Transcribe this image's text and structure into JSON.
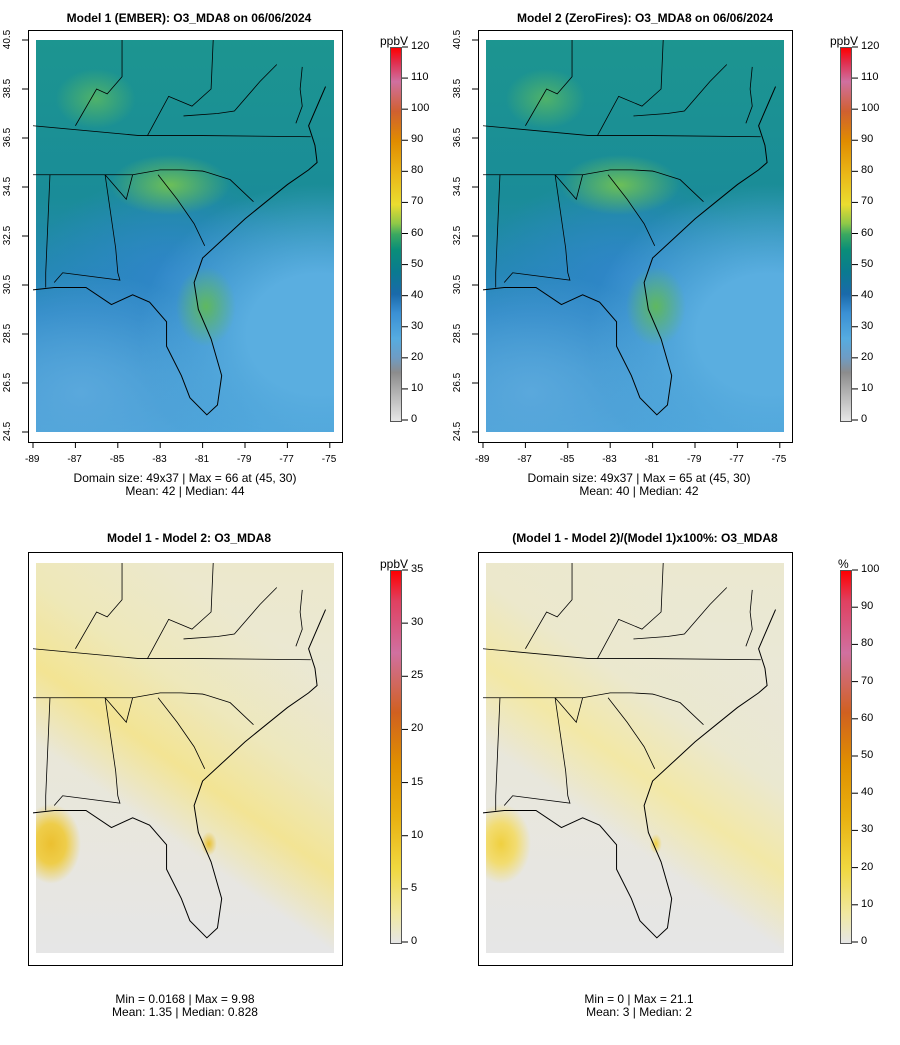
{
  "panels": [
    {
      "title": "Model 1 (EMBER): O3_MDA8 on 06/06/2024",
      "stats1": "Domain size: 49x37 | Max = 66 at (45, 30)",
      "stats2": "Mean: 42 |  Median: 44",
      "unit": "ppbV",
      "kind": "ozone"
    },
    {
      "title": "Model 2 (ZeroFires): O3_MDA8 on 06/06/2024",
      "stats1": "Domain size: 49x37 | Max = 65 at (45, 30)",
      "stats2": "Mean: 40 |  Median: 42",
      "unit": "ppbV",
      "kind": "ozone"
    },
    {
      "title": "Model 1 - Model 2: O3_MDA8",
      "stats1": "Min = 0.0168 | Max = 9.98",
      "stats2": "Mean: 1.35 |  Median: 0.828",
      "unit": "ppbV",
      "kind": "diff"
    },
    {
      "title": "(Model 1 - Model 2)/(Model 1)x100%: O3_MDA8",
      "stats1": "Min = 0 | Max = 21.1",
      "stats2": "Mean: 3 |  Median: 2",
      "unit": "%",
      "kind": "pct"
    }
  ],
  "chart_data": [
    {
      "type": "heatmap",
      "title": "Model 1 (EMBER): O3_MDA8 on 06/06/2024",
      "xlabel": "",
      "ylabel": "",
      "xticks": [
        "-89",
        "-87",
        "-85",
        "-83",
        "-81",
        "-79",
        "-77",
        "-75"
      ],
      "yticks": [
        "40.5",
        "38.5",
        "36.5",
        "34.5",
        "32.5",
        "30.5",
        "28.5",
        "26.5",
        "24.5"
      ],
      "xlim": [
        -89,
        -75
      ],
      "ylim": [
        24.5,
        40.5
      ],
      "colorbar": {
        "label": "ppbV",
        "range": [
          0,
          120
        ],
        "ticks": [
          "0",
          "10",
          "20",
          "30",
          "40",
          "50",
          "60",
          "70",
          "80",
          "90",
          "100",
          "110",
          "120"
        ]
      },
      "domain_size": "49x37",
      "max": 66,
      "max_at": [
        45,
        30
      ],
      "mean": 42,
      "median": 44
    },
    {
      "type": "heatmap",
      "title": "Model 2 (ZeroFires): O3_MDA8 on 06/06/2024",
      "xticks": [
        "-89",
        "-87",
        "-85",
        "-83",
        "-81",
        "-79",
        "-77",
        "-75"
      ],
      "yticks": [
        "40.5",
        "38.5",
        "36.5",
        "34.5",
        "32.5",
        "30.5",
        "28.5",
        "26.5",
        "24.5"
      ],
      "xlim": [
        -89,
        -75
      ],
      "ylim": [
        24.5,
        40.5
      ],
      "colorbar": {
        "label": "ppbV",
        "range": [
          0,
          120
        ],
        "ticks": [
          "0",
          "10",
          "20",
          "30",
          "40",
          "50",
          "60",
          "70",
          "80",
          "90",
          "100",
          "110",
          "120"
        ]
      },
      "domain_size": "49x37",
      "max": 65,
      "max_at": [
        45,
        30
      ],
      "mean": 40,
      "median": 42
    },
    {
      "type": "heatmap",
      "title": "Model 1 - Model 2: O3_MDA8",
      "colorbar": {
        "label": "ppbV",
        "range": [
          0,
          35
        ],
        "ticks": [
          "0",
          "5",
          "10",
          "15",
          "20",
          "25",
          "30",
          "35"
        ]
      },
      "min": 0.0168,
      "max": 9.98,
      "mean": 1.35,
      "median": 0.828
    },
    {
      "type": "heatmap",
      "title": "(Model 1 - Model 2)/(Model 1)x100%: O3_MDA8",
      "colorbar": {
        "label": "%",
        "range": [
          0,
          100
        ],
        "ticks": [
          "0",
          "10",
          "20",
          "30",
          "40",
          "50",
          "60",
          "70",
          "80",
          "90",
          "100"
        ]
      },
      "min": 0,
      "max": 21.1,
      "mean": 3,
      "median": 2
    }
  ]
}
